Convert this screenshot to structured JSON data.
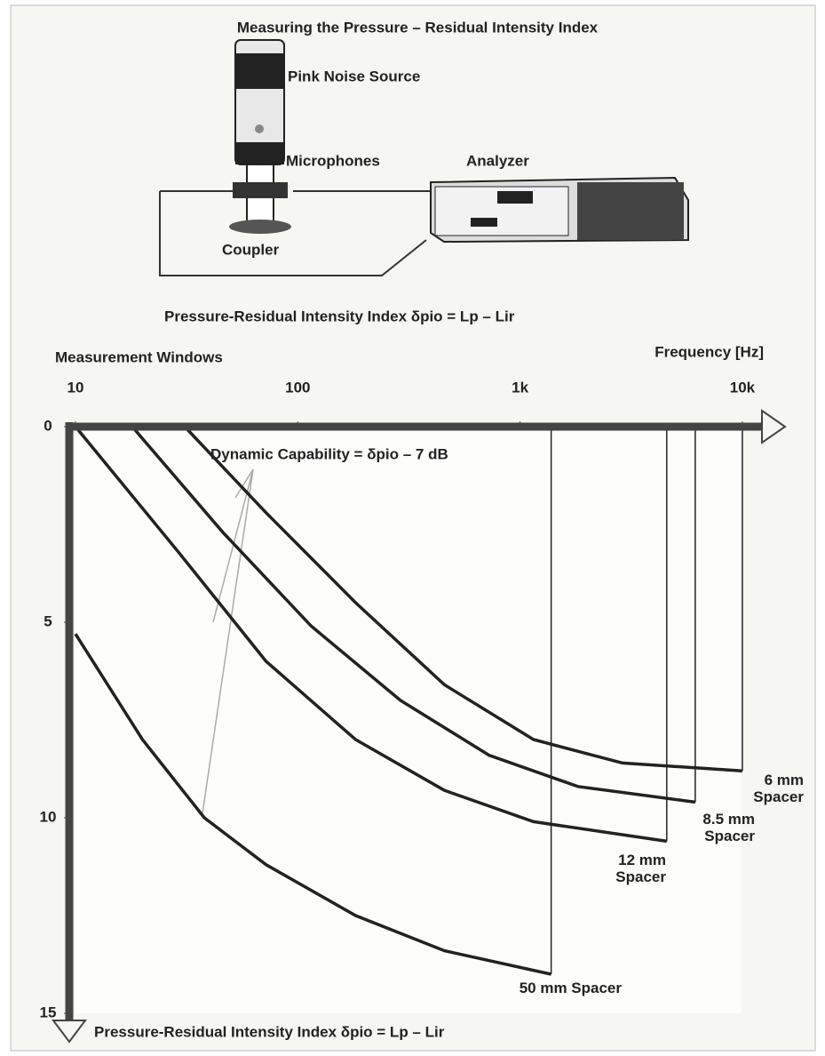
{
  "chart_data": {
    "type": "line",
    "title": "Measuring the Pressure – Residual Intensity Index",
    "diagram_labels": {
      "source": "Pink Noise Source",
      "microphones": "Microphones",
      "analyzer": "Analyzer",
      "coupler": "Coupler"
    },
    "subtitle": "Pressure-Residual Intensity Index δpio = Lp – Lir",
    "x_label_left": "Measurement Windows",
    "x_label": "Frequency [Hz]",
    "y_label": "Pressure-Residual Intensity Index δpio = Lp – Lir",
    "annotation": "Dynamic Capability = δpio – 7 dB",
    "x_scale": "log",
    "xlim": [
      10,
      15000
    ],
    "xticks": [
      {
        "value": 10,
        "label": "10"
      },
      {
        "value": 100,
        "label": "100"
      },
      {
        "value": 1000,
        "label": "1k"
      },
      {
        "value": 10000,
        "label": "10k"
      }
    ],
    "ylim": [
      0,
      15
    ],
    "y_inverted": true,
    "yticks": [
      0,
      5,
      10,
      15
    ],
    "series": [
      {
        "name": "6 mm Spacer",
        "color": "#222222",
        "x": [
          31,
          72,
          182,
          457,
          1150,
          2890,
          10000
        ],
        "values": [
          0,
          2.2,
          4.5,
          6.6,
          8.0,
          8.6,
          8.8
        ]
      },
      {
        "name": "8.5 mm Spacer",
        "color": "#222222",
        "x": [
          18,
          46,
          115,
          290,
          725,
          1820,
          6140
        ],
        "values": [
          0,
          2.7,
          5.1,
          7.0,
          8.4,
          9.2,
          9.6
        ]
      },
      {
        "name": "12 mm Spacer",
        "color": "#222222",
        "x": [
          10,
          29,
          72,
          182,
          457,
          1150,
          4570
        ],
        "values": [
          0,
          3.2,
          6.0,
          8.0,
          9.3,
          10.1,
          10.6
        ]
      },
      {
        "name": "50 mm Spacer",
        "color": "#222222",
        "x": [
          10,
          20,
          38,
          72,
          182,
          457,
          1380
        ],
        "values": [
          5.3,
          8.0,
          10.0,
          11.2,
          12.5,
          13.4,
          14.0
        ]
      }
    ]
  }
}
